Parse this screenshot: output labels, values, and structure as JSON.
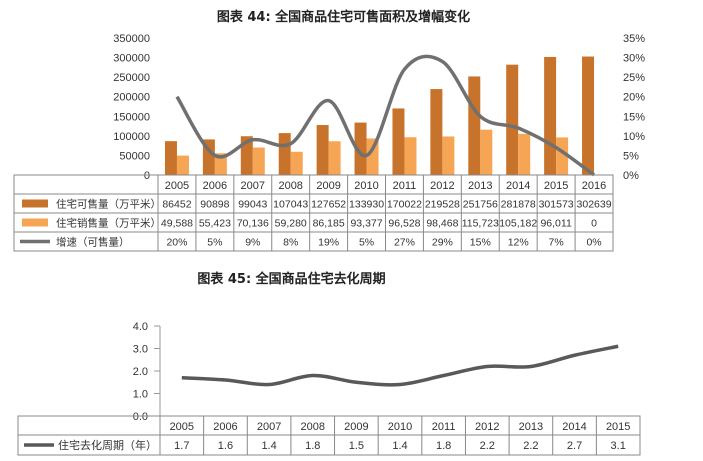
{
  "chart_data": [
    {
      "type": "bar",
      "title": "图表 44: 全国商品住宅可售面积及增幅变化",
      "categories": [
        "2005",
        "2006",
        "2007",
        "2008",
        "2009",
        "2010",
        "2011",
        "2012",
        "2013",
        "2014",
        "2015",
        "2016"
      ],
      "ylim": [
        0,
        350000
      ],
      "y_ticks": [
        "0",
        "50000",
        "100000",
        "150000",
        "200000",
        "250000",
        "300000",
        "350000"
      ],
      "y2lim": [
        0,
        35
      ],
      "y2_ticks": [
        "0%",
        "5%",
        "10%",
        "15%",
        "20%",
        "25%",
        "30%",
        "35%"
      ],
      "series": [
        {
          "name": "住宅可售量（万平米）",
          "kind": "bar",
          "color": "#C8732B",
          "values": [
            86452,
            90898,
            99043,
            107043,
            127652,
            133930,
            170022,
            219528,
            251756,
            281878,
            301573,
            302639
          ],
          "labels": [
            "86452",
            "90898",
            "99043",
            "107043",
            "127652",
            "133930",
            "170022",
            "219528",
            "251756",
            "281878",
            "301573",
            "302639"
          ]
        },
        {
          "name": "住宅销售量（万平米）",
          "kind": "bar",
          "color": "#F5A553",
          "values": [
            49588,
            55423,
            70136,
            59280,
            86185,
            93377,
            96528,
            98468,
            115723,
            105182,
            96011,
            0
          ],
          "labels": [
            "49,588",
            "55,423",
            "70,136",
            "59,280",
            "86,185",
            "93,377",
            "96,528",
            "98,468",
            "115,723",
            "105,182",
            "96,011",
            "0"
          ]
        },
        {
          "name": "增速（可售量）",
          "kind": "line",
          "axis": "right",
          "color": "#707070",
          "values": [
            20,
            5,
            9,
            8,
            19,
            5,
            27,
            29,
            15,
            12,
            7,
            0
          ],
          "labels": [
            "20%",
            "5%",
            "9%",
            "8%",
            "19%",
            "5%",
            "27%",
            "29%",
            "15%",
            "12%",
            "7%",
            "0%"
          ]
        }
      ]
    },
    {
      "type": "line",
      "title": "图表 45: 全国商品住宅去化周期",
      "categories": [
        "2005",
        "2006",
        "2007",
        "2008",
        "2009",
        "2010",
        "2011",
        "2012",
        "2013",
        "2014",
        "2015"
      ],
      "ylim": [
        0,
        4
      ],
      "y_ticks": [
        "0.0",
        "1.0",
        "2.0",
        "3.0",
        "4.0"
      ],
      "series": [
        {
          "name": "住宅去化周期（年）",
          "color": "#595959",
          "values": [
            1.7,
            1.6,
            1.4,
            1.8,
            1.5,
            1.4,
            1.8,
            2.2,
            2.2,
            2.7,
            3.1
          ],
          "labels": [
            "1.7",
            "1.6",
            "1.4",
            "1.8",
            "1.5",
            "1.4",
            "1.8",
            "2.2",
            "2.2",
            "2.7",
            "3.1"
          ]
        }
      ]
    }
  ]
}
